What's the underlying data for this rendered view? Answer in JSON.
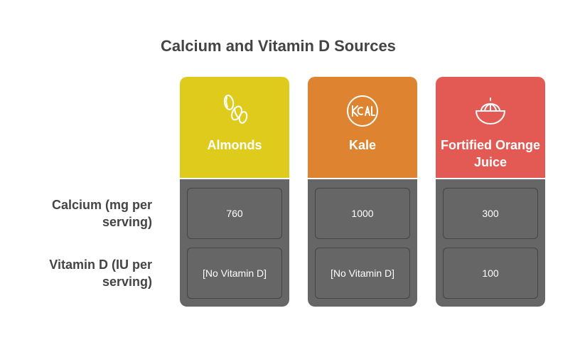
{
  "title": "Calcium and Vitamin D Sources",
  "rows": [
    {
      "label": "Calcium (mg per serving)"
    },
    {
      "label": "Vitamin D (IU per serving)"
    }
  ],
  "columns": [
    {
      "name": "Almonds",
      "icon": "almond-icon",
      "color": "#dfcb1c",
      "calcium": "760",
      "vitamin_d": "[No Vitamin D]"
    },
    {
      "name": "Kale",
      "icon": "kcal-icon",
      "color": "#de8430",
      "calcium": "1000",
      "vitamin_d": "[No Vitamin D]"
    },
    {
      "name": "Fortified Orange Juice",
      "icon": "orange-juicer-icon",
      "color": "#e25a53",
      "calcium": "300",
      "vitamin_d": "100"
    }
  ]
}
